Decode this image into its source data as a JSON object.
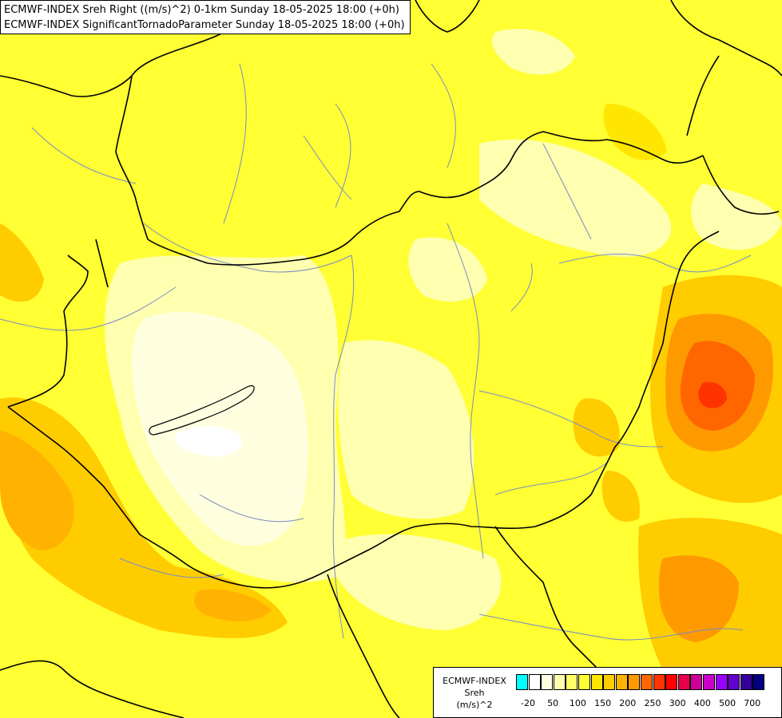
{
  "header": {
    "line1": "ECMWF-INDEX Sreh Right ((m/s)^2) 0-1km Sunday 18-05-2025 18:00 (+0h)",
    "line2": "ECMWF-INDEX SignificantTornadoParameter Sunday 18-05-2025 18:00 (+0h)"
  },
  "legend": {
    "title_line1": "ECMWF-INDEX",
    "title_line2": "Sreh",
    "title_line3": "(m/s)^2",
    "colors": [
      "#00ffff",
      "#ffffff",
      "#ffffe0",
      "#ffffb0",
      "#ffff66",
      "#ffff33",
      "#ffe600",
      "#ffcc00",
      "#ffb300",
      "#ff9900",
      "#ff6600",
      "#ff3300",
      "#ff0000",
      "#e6004c",
      "#cc0099",
      "#cc00cc",
      "#9900ff",
      "#6600cc",
      "#330099",
      "#000080"
    ],
    "ticks": [
      "-20",
      "50",
      "100",
      "150",
      "200",
      "250",
      "300",
      "400",
      "500",
      "700"
    ]
  },
  "map": {
    "fill_colors": {
      "base": "#ffff33",
      "pale": "#ffffb0",
      "very_pale": "#ffffe0",
      "white": "#ffffff",
      "light_orange": "#ffe600",
      "orange": "#ffcc00",
      "deep_orange": "#ff9900",
      "red_orange": "#ff6600",
      "red": "#ff3300"
    },
    "line_colors": {
      "border": "#000000",
      "river": "#7a8cc2"
    }
  }
}
